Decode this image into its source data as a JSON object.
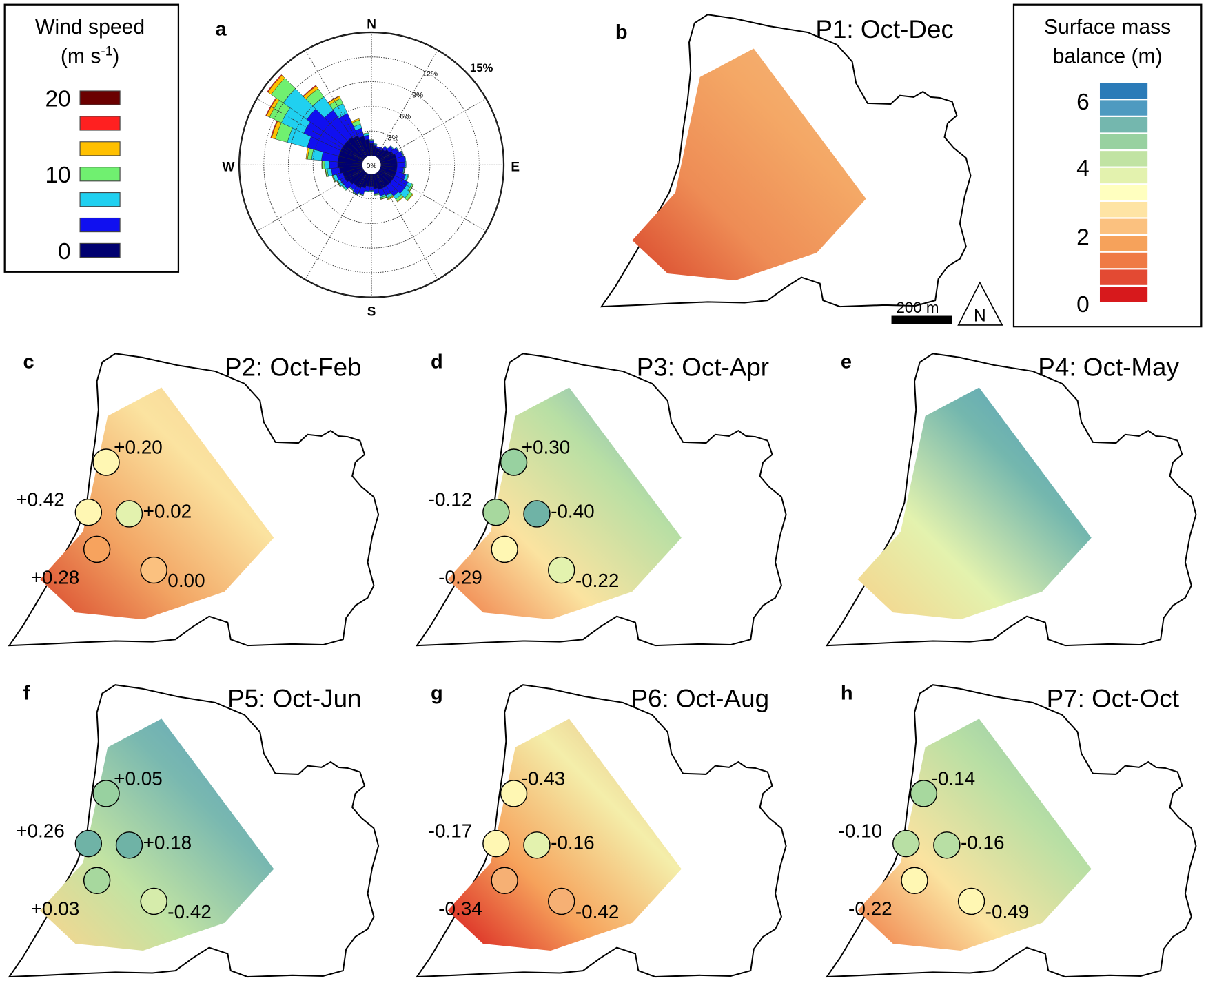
{
  "wind_legend": {
    "title": "Wind speed",
    "unit_prefix": "(m s",
    "unit_sup": "-1",
    "unit_suffix": ")",
    "swatches": [
      "#6b0000",
      "#ff2020",
      "#ffc000",
      "#70f070",
      "#20d0f0",
      "#1010f0",
      "#000070"
    ],
    "labels": [
      "20",
      "10",
      "0"
    ]
  },
  "panel_a": {
    "letter": "a",
    "compass": {
      "n": "N",
      "e": "E",
      "s": "S",
      "w": "W"
    },
    "ring_labels": [
      "0%",
      "3%",
      "6%",
      "9%",
      "12%",
      "15%"
    ]
  },
  "chart_data": {
    "type": "wind-rose",
    "rmax_percent": 15,
    "rings_percent": [
      3,
      6,
      9,
      12,
      15
    ],
    "class_colors": [
      "#000070",
      "#1010f0",
      "#20d0f0",
      "#70f070",
      "#ffc000",
      "#ff2020",
      "#6b0000"
    ],
    "bins": [
      {
        "dir": 0,
        "pct": [
          1.5,
          0.3,
          0.1,
          0.05,
          0,
          0,
          0
        ]
      },
      {
        "dir": 10,
        "pct": [
          1.2,
          0.2,
          0.1,
          0,
          0,
          0,
          0
        ]
      },
      {
        "dir": 20,
        "pct": [
          1.0,
          0.2,
          0,
          0,
          0,
          0,
          0
        ]
      },
      {
        "dir": 30,
        "pct": [
          1.0,
          0.3,
          0,
          0,
          0,
          0,
          0
        ]
      },
      {
        "dir": 40,
        "pct": [
          1.2,
          0.4,
          0.1,
          0,
          0,
          0,
          0
        ]
      },
      {
        "dir": 50,
        "pct": [
          1.5,
          0.6,
          0.1,
          0,
          0,
          0,
          0
        ]
      },
      {
        "dir": 60,
        "pct": [
          1.8,
          0.7,
          0.1,
          0,
          0,
          0,
          0
        ]
      },
      {
        "dir": 70,
        "pct": [
          2.0,
          0.8,
          0.1,
          0.05,
          0,
          0,
          0
        ]
      },
      {
        "dir": 80,
        "pct": [
          2.0,
          1.0,
          0.1,
          0,
          0,
          0,
          0
        ]
      },
      {
        "dir": 90,
        "pct": [
          2.0,
          1.0,
          0.1,
          0,
          0,
          0,
          0
        ]
      },
      {
        "dir": 100,
        "pct": [
          2.0,
          0.8,
          0.1,
          0.05,
          0,
          0,
          0
        ]
      },
      {
        "dir": 110,
        "pct": [
          2.0,
          1.2,
          0.3,
          0.1,
          0,
          0,
          0
        ]
      },
      {
        "dir": 120,
        "pct": [
          2.0,
          1.8,
          0.5,
          0.2,
          0.05,
          0,
          0
        ]
      },
      {
        "dir": 130,
        "pct": [
          2.0,
          1.8,
          0.8,
          0.4,
          0.1,
          0,
          0
        ]
      },
      {
        "dir": 140,
        "pct": [
          2.0,
          1.5,
          0.5,
          0.3,
          0.1,
          0,
          0
        ]
      },
      {
        "dir": 150,
        "pct": [
          2.0,
          1.0,
          0.3,
          0.2,
          0.1,
          0,
          0
        ]
      },
      {
        "dir": 160,
        "pct": [
          2.0,
          0.8,
          0.2,
          0.2,
          0.05,
          0,
          0
        ]
      },
      {
        "dir": 170,
        "pct": [
          1.8,
          0.6,
          0.1,
          0.1,
          0,
          0,
          0
        ]
      },
      {
        "dir": 180,
        "pct": [
          1.5,
          0.5,
          0.1,
          0,
          0,
          0,
          0
        ]
      },
      {
        "dir": 190,
        "pct": [
          1.5,
          0.6,
          0.1,
          0,
          0,
          0,
          0
        ]
      },
      {
        "dir": 200,
        "pct": [
          1.8,
          0.8,
          0.1,
          0.05,
          0,
          0,
          0
        ]
      },
      {
        "dir": 210,
        "pct": [
          2.0,
          0.8,
          0.1,
          0.05,
          0,
          0,
          0
        ]
      },
      {
        "dir": 220,
        "pct": [
          2.0,
          0.6,
          0.1,
          0.05,
          0,
          0,
          0
        ]
      },
      {
        "dir": 230,
        "pct": [
          2.2,
          0.8,
          0.2,
          0.1,
          0,
          0,
          0
        ]
      },
      {
        "dir": 240,
        "pct": [
          2.5,
          0.6,
          0.3,
          0.1,
          0.05,
          0,
          0
        ]
      },
      {
        "dir": 250,
        "pct": [
          2.5,
          0.8,
          0.4,
          0.1,
          0.05,
          0,
          0
        ]
      },
      {
        "dir": 260,
        "pct": [
          2.8,
          1.0,
          0.5,
          0.2,
          0.05,
          0,
          0
        ]
      },
      {
        "dir": 270,
        "pct": [
          3.0,
          1.0,
          0.6,
          0.3,
          0.05,
          0,
          0
        ]
      },
      {
        "dir": 280,
        "pct": [
          3.0,
          2.0,
          1.2,
          0.5,
          0.2,
          0,
          0
        ]
      },
      {
        "dir": 290,
        "pct": [
          3.0,
          4.0,
          2.5,
          1.5,
          0.5,
          0.1,
          0
        ]
      },
      {
        "dir": 300,
        "pct": [
          3.0,
          5.0,
          3.0,
          1.6,
          0.4,
          0.1,
          0
        ]
      },
      {
        "dir": 310,
        "pct": [
          3.0,
          5.5,
          3.5,
          1.8,
          0.5,
          0.1,
          0
        ]
      },
      {
        "dir": 320,
        "pct": [
          3.0,
          4.0,
          2.0,
          1.2,
          0.4,
          0.1,
          0
        ]
      },
      {
        "dir": 330,
        "pct": [
          2.8,
          3.0,
          1.3,
          0.7,
          0.3,
          0.05,
          0
        ]
      },
      {
        "dir": 340,
        "pct": [
          2.5,
          1.0,
          0.5,
          0.5,
          0.2,
          0,
          0
        ]
      },
      {
        "dir": 350,
        "pct": [
          2.0,
          0.5,
          0.2,
          0.1,
          0,
          0,
          0
        ]
      }
    ]
  },
  "smb_legend": {
    "title_line1": "Surface mass",
    "title_line2": "balance (m)",
    "colors": [
      "#d7191c",
      "#e34a33",
      "#ef7a45",
      "#f6a25b",
      "#fbc17f",
      "#fee4a4",
      "#ffffbf",
      "#e3f2ae",
      "#c1e3a3",
      "#98d1a0",
      "#74b7ae",
      "#4e9ac0",
      "#2b7bb8"
    ],
    "labels": [
      "0",
      "2",
      "4",
      "6"
    ]
  },
  "scale_bar": {
    "label": "200 m"
  },
  "north_arrow": {
    "label": "N"
  },
  "panels": [
    {
      "key": "b",
      "letter": "b",
      "title": "P1: Oct-Dec",
      "grad": [
        "#d9472c",
        "#ee8c55",
        "#f4a866",
        "#f2b57a"
      ],
      "points": []
    },
    {
      "key": "c",
      "letter": "c",
      "title": "P2: Oct-Feb",
      "grad": [
        "#d9472c",
        "#f2a463",
        "#fbe3a0",
        "#f3cf92"
      ],
      "points": [
        {
          "label": "+0.20",
          "fill": "#fff7b3"
        },
        {
          "label": "+0.42",
          "fill": "#fff7b3"
        },
        {
          "label": "+0.02",
          "fill": "#e3f2ae"
        },
        {
          "label": "+0.28",
          "fill": "#f7a35e"
        },
        {
          "label": "0.00",
          "fill": "#fbc17f"
        }
      ]
    },
    {
      "key": "d",
      "letter": "d",
      "title": "P3: Oct-Apr",
      "grad": [
        "#ef7a45",
        "#fbe3a0",
        "#b8dfa4",
        "#6fa9c6"
      ],
      "points": [
        {
          "label": "+0.30",
          "fill": "#98d1a0"
        },
        {
          "label": "-0.12",
          "fill": "#a7d89e"
        },
        {
          "label": "-0.40",
          "fill": "#6fb3a6"
        },
        {
          "label": "-0.29",
          "fill": "#fff7b3"
        },
        {
          "label": "-0.22",
          "fill": "#e3f2ae"
        }
      ]
    },
    {
      "key": "e",
      "letter": "e",
      "title": "P4: Oct-May",
      "grad": [
        "#f7d28a",
        "#e3f2ae",
        "#74b7ae",
        "#4e9ac0"
      ],
      "points": []
    },
    {
      "key": "f",
      "letter": "f",
      "title": "P5: Oct-Jun",
      "grad": [
        "#fbd58e",
        "#c1e3a3",
        "#79b8b0",
        "#5a9fbf"
      ],
      "points": [
        {
          "label": "+0.05",
          "fill": "#98d1a0"
        },
        {
          "label": "+0.26",
          "fill": "#6fb3a6"
        },
        {
          "label": "+0.18",
          "fill": "#6fb3a6"
        },
        {
          "label": "+0.03",
          "fill": "#a7d89e"
        },
        {
          "label": "-0.42",
          "fill": "#d6ecab"
        }
      ]
    },
    {
      "key": "g",
      "letter": "g",
      "title": "P6: Oct-Aug",
      "grad": [
        "#d7191c",
        "#f6a25b",
        "#f4eeaa",
        "#e2b07a"
      ],
      "points": [
        {
          "label": "-0.43",
          "fill": "#fff7b3"
        },
        {
          "label": "-0.17",
          "fill": "#fff7b3"
        },
        {
          "label": "-0.16",
          "fill": "#e3f2ae"
        },
        {
          "label": "-0.34",
          "fill": "#f6b074"
        },
        {
          "label": "-0.42",
          "fill": "#f6b074"
        }
      ]
    },
    {
      "key": "h",
      "letter": "h",
      "title": "P7: Oct-Oct",
      "grad": [
        "#ef7a45",
        "#fbe3a0",
        "#b8dfa4",
        "#86bfb0"
      ],
      "points": [
        {
          "label": "-0.14",
          "fill": "#a7d89e"
        },
        {
          "label": "-0.10",
          "fill": "#b8dfa4"
        },
        {
          "label": "-0.16",
          "fill": "#b8dfa4"
        },
        {
          "label": "-0.22",
          "fill": "#fff7b3"
        },
        {
          "label": "-0.49",
          "fill": "#fff7b3"
        }
      ]
    }
  ]
}
